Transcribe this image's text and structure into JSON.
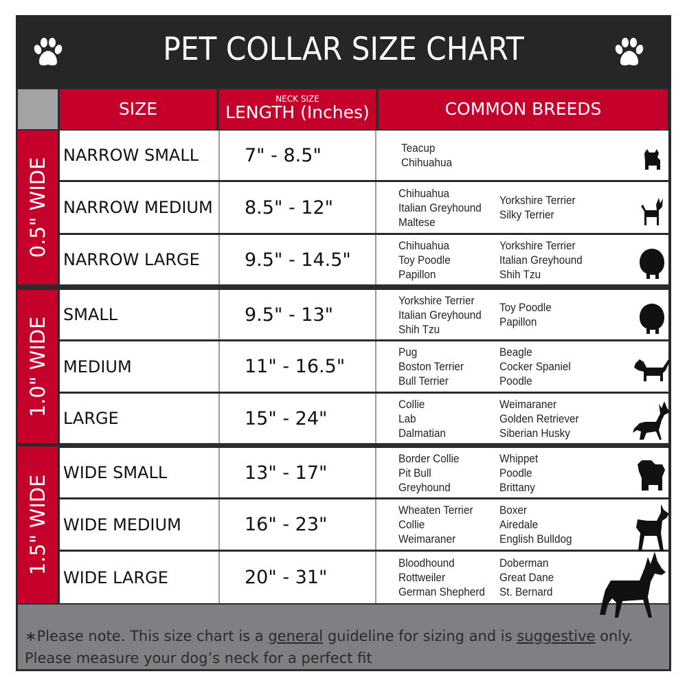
{
  "title": "PET COLLAR SIZE CHART",
  "headers": {
    "size": "SIZE",
    "length_small": "NECK SIZE",
    "length": "LENGTH (Inches)",
    "breeds": "COMMON BREEDS"
  },
  "colors": {
    "accent": "#c4002b",
    "dark": "#262626",
    "footer": "#808084"
  },
  "groups": [
    {
      "label": "0.5\" WIDE",
      "rows": [
        {
          "size": "NARROW SMALL",
          "length": "7\" - 8.5\"",
          "breeds_col1": [
            "Teacup",
            "Chihuahua"
          ],
          "breeds_col2": [],
          "icon": "yorkie-silhouette-icon"
        },
        {
          "size": "NARROW MEDIUM",
          "length": "8.5\" - 12\"",
          "breeds_col1": [
            "Chihuahua",
            "Italian Greyhound",
            "Maltese"
          ],
          "breeds_col2": [
            "Yorkshire Terrier",
            "Silky Terrier"
          ],
          "icon": "chihuahua-silhouette-icon"
        },
        {
          "size": "NARROW LARGE",
          "length": "9.5\" - 14.5\"",
          "breeds_col1": [
            "Chihuahua",
            "Toy Poodle",
            "Papillon"
          ],
          "breeds_col2": [
            "Yorkshire Terrier",
            "Italian Greyhound",
            "Shih Tzu"
          ],
          "icon": "pomeranian-silhouette-icon"
        }
      ]
    },
    {
      "label": "1.0\" WIDE",
      "rows": [
        {
          "size": "SMALL",
          "length": "9.5\" - 13\"",
          "breeds_col1": [
            "Yorkshire Terrier",
            "Italian Greyhound",
            "Shih Tzu"
          ],
          "breeds_col2": [
            "Toy Poodle",
            "Papillon"
          ],
          "icon": "pomeranian-silhouette-icon"
        },
        {
          "size": "MEDIUM",
          "length": "11\" - 16.5\"",
          "breeds_col1": [
            "Pug",
            "Boston Terrier",
            "Bull Terrier"
          ],
          "breeds_col2": [
            "Beagle",
            "Cocker Spaniel",
            "Poodle"
          ],
          "icon": "dachshund-silhouette-icon"
        },
        {
          "size": "LARGE",
          "length": "15\" - 24\"",
          "breeds_col1": [
            "Collie",
            "Lab",
            "Dalmatian"
          ],
          "breeds_col2": [
            "Weimaraner",
            "Golden Retriever",
            "Siberian Husky"
          ],
          "icon": "shepherd-silhouette-icon"
        }
      ]
    },
    {
      "label": "1.5\" WIDE",
      "rows": [
        {
          "size": "WIDE SMALL",
          "length": "13\" - 17\"",
          "breeds_col1": [
            "Border Collie",
            "Pit Bull",
            "Greyhound"
          ],
          "breeds_col2": [
            "Whippet",
            "Poodle",
            "Brittany"
          ],
          "icon": "bulldog-silhouette-icon"
        },
        {
          "size": "WIDE MEDIUM",
          "length": "16\" - 23\"",
          "breeds_col1": [
            "Wheaten Terrier",
            "Collie",
            "Weimaraner"
          ],
          "breeds_col2": [
            "Boxer",
            "Airedale",
            "English Bulldog"
          ],
          "icon": "pitbull-silhouette-icon"
        },
        {
          "size": "WIDE LARGE",
          "length": "20\" - 31\"",
          "breeds_col1": [
            "Bloodhound",
            "Rottweiler",
            "German Shepherd"
          ],
          "breeds_col2": [
            "Doberman",
            "Great Dane",
            "St. Bernard"
          ],
          "icon": "doberman-silhouette-icon"
        }
      ]
    }
  ],
  "footer": {
    "prefix": "∗Please note. This size chart is a ",
    "u1": "general",
    "mid": " guideline for sizing and is ",
    "u2": "suggestive",
    "suffix": " only.",
    "line2": "Please measure your dog’s neck for a perfect fit"
  }
}
